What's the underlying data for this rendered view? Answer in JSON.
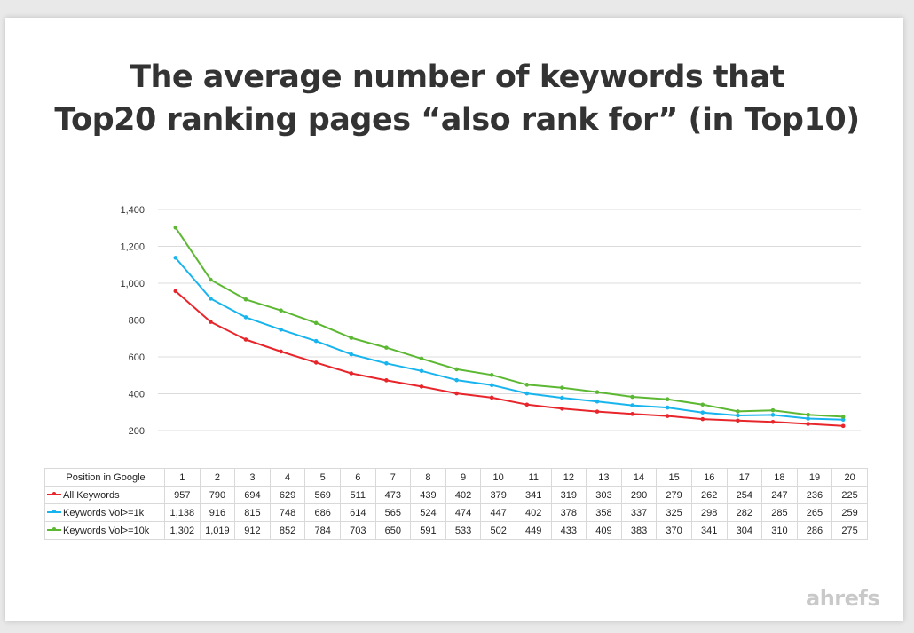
{
  "title_line1": "The average number of keywords that",
  "title_line2": "Top20 ranking pages “also rank for” (in Top10)",
  "logo_text": "ahrefs",
  "colors": {
    "all": "#e8252b",
    "vol1k": "#17b4ee",
    "vol10k": "#5cb833",
    "grid": "#dcdcdc",
    "title": "#333333",
    "logo": "#c9c9c9"
  },
  "chart_data": {
    "type": "line",
    "title": "The average number of keywords that Top20 ranking pages “also rank for” (in Top10)",
    "xlabel": "Position in Google",
    "ylabel": "",
    "ylim": [
      200,
      1400
    ],
    "yticks": [
      "200",
      "400",
      "600",
      "800",
      "1,000",
      "1,200",
      "1,400"
    ],
    "ytick_values": [
      200,
      400,
      600,
      800,
      1000,
      1200,
      1400
    ],
    "grid": true,
    "legend": "data table below chart",
    "x": [
      "1",
      "2",
      "3",
      "4",
      "5",
      "6",
      "7",
      "8",
      "9",
      "10",
      "11",
      "12",
      "13",
      "14",
      "15",
      "16",
      "17",
      "18",
      "19",
      "20"
    ],
    "series": [
      {
        "name": "All Keywords",
        "color": "#e8252b",
        "values": [
          957,
          790,
          694,
          629,
          569,
          511,
          473,
          439,
          402,
          379,
          341,
          319,
          303,
          290,
          279,
          262,
          254,
          247,
          236,
          225
        ],
        "labels": [
          "957",
          "790",
          "694",
          "629",
          "569",
          "511",
          "473",
          "439",
          "402",
          "379",
          "341",
          "319",
          "303",
          "290",
          "279",
          "262",
          "254",
          "247",
          "236",
          "225"
        ]
      },
      {
        "name": "Keywords Vol>=1k",
        "color": "#17b4ee",
        "values": [
          1138,
          916,
          815,
          748,
          686,
          614,
          565,
          524,
          474,
          447,
          402,
          378,
          358,
          337,
          325,
          298,
          282,
          285,
          265,
          259
        ],
        "labels": [
          "1,138",
          "916",
          "815",
          "748",
          "686",
          "614",
          "565",
          "524",
          "474",
          "447",
          "402",
          "378",
          "358",
          "337",
          "325",
          "298",
          "282",
          "285",
          "265",
          "259"
        ]
      },
      {
        "name": "Keywords Vol>=10k",
        "color": "#5cb833",
        "values": [
          1302,
          1019,
          912,
          852,
          784,
          703,
          650,
          591,
          533,
          502,
          449,
          433,
          409,
          383,
          370,
          341,
          304,
          310,
          286,
          275
        ],
        "labels": [
          "1,302",
          "1,019",
          "912",
          "852",
          "784",
          "703",
          "650",
          "591",
          "533",
          "502",
          "449",
          "433",
          "409",
          "383",
          "370",
          "341",
          "304",
          "310",
          "286",
          "275"
        ]
      }
    ]
  }
}
